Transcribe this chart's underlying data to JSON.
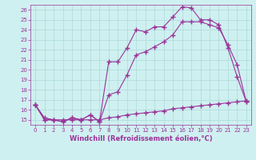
{
  "xlabel": "Windchill (Refroidissement éolien,°C)",
  "xlim": [
    -0.5,
    23.5
  ],
  "ylim": [
    14.5,
    26.5
  ],
  "xticks": [
    0,
    1,
    2,
    3,
    4,
    5,
    6,
    7,
    8,
    9,
    10,
    11,
    12,
    13,
    14,
    15,
    16,
    17,
    18,
    19,
    20,
    21,
    22,
    23
  ],
  "yticks": [
    15,
    16,
    17,
    18,
    19,
    20,
    21,
    22,
    23,
    24,
    25,
    26
  ],
  "background_color": "#cff0f0",
  "grid_color": "#aadada",
  "line_color": "#993399",
  "line1_x": [
    0,
    1,
    2,
    3,
    4,
    5,
    6,
    7,
    8,
    9,
    10,
    11,
    12,
    13,
    14,
    15,
    16,
    17,
    18,
    19,
    20,
    21,
    22,
    23
  ],
  "line1_y": [
    16.5,
    15.0,
    15.0,
    14.8,
    15.2,
    15.0,
    15.5,
    14.8,
    20.8,
    20.8,
    22.2,
    24.0,
    23.8,
    24.3,
    24.3,
    25.3,
    26.3,
    26.2,
    25.0,
    25.0,
    24.5,
    22.2,
    19.3,
    16.8
  ],
  "line2_x": [
    0,
    1,
    2,
    3,
    4,
    5,
    6,
    7,
    8,
    9,
    10,
    11,
    12,
    13,
    14,
    15,
    16,
    17,
    18,
    19,
    20,
    21,
    22,
    23
  ],
  "line2_y": [
    16.5,
    15.0,
    15.0,
    14.8,
    15.2,
    15.0,
    15.5,
    14.8,
    17.5,
    17.8,
    19.5,
    21.5,
    21.8,
    22.3,
    22.8,
    23.5,
    24.8,
    24.8,
    24.8,
    24.5,
    24.2,
    22.5,
    20.5,
    16.8
  ],
  "line3_x": [
    0,
    1,
    2,
    3,
    4,
    5,
    6,
    7,
    8,
    9,
    10,
    11,
    12,
    13,
    14,
    15,
    16,
    17,
    18,
    19,
    20,
    21,
    22,
    23
  ],
  "line3_y": [
    16.5,
    15.2,
    15.0,
    15.0,
    15.0,
    15.0,
    15.0,
    15.0,
    15.2,
    15.3,
    15.5,
    15.6,
    15.7,
    15.8,
    15.9,
    16.1,
    16.2,
    16.3,
    16.4,
    16.5,
    16.6,
    16.7,
    16.8,
    16.9
  ],
  "marker": "+",
  "markersize": 4,
  "linewidth": 0.8,
  "tick_fontsize": 5,
  "xlabel_fontsize": 6
}
